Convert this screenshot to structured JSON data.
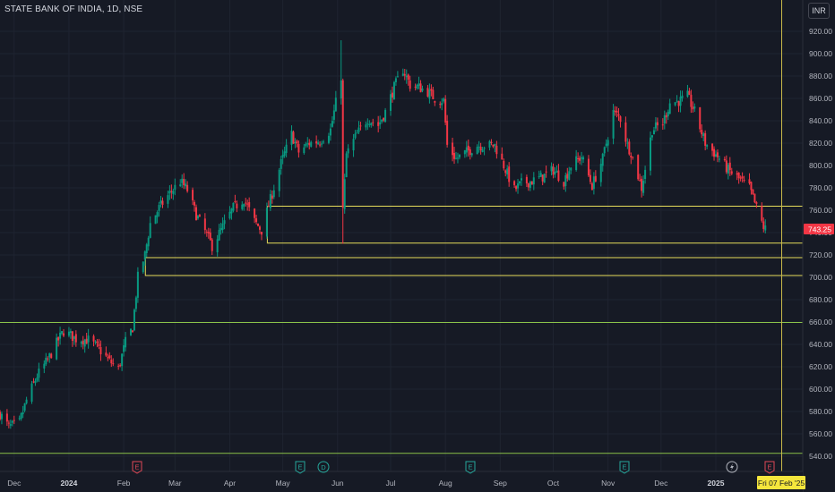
{
  "header": {
    "symbol_title": "STATE BANK OF INDIA, 1D, NSE",
    "currency_label": "INR"
  },
  "price_scale": {
    "ticks": [
      "920.00",
      "900.00",
      "880.00",
      "860.00",
      "840.00",
      "820.00",
      "800.00",
      "780.00",
      "760.00",
      "740.00",
      "720.00",
      "700.00",
      "680.00",
      "660.00",
      "640.00",
      "620.00",
      "600.00",
      "580.00",
      "560.00",
      "540.00"
    ],
    "last_price_label": "743.25",
    "last_price": 743.25,
    "last_price_color": "#f23645"
  },
  "time_scale": {
    "labels": [
      {
        "text": "Dec",
        "strong": false
      },
      {
        "text": "2024",
        "strong": true
      },
      {
        "text": "Feb",
        "strong": false
      },
      {
        "text": "Mar",
        "strong": false
      },
      {
        "text": "Apr",
        "strong": false
      },
      {
        "text": "May",
        "strong": false
      },
      {
        "text": "Jun",
        "strong": false
      },
      {
        "text": "Jul",
        "strong": false
      },
      {
        "text": "Aug",
        "strong": false
      },
      {
        "text": "Sep",
        "strong": false
      },
      {
        "text": "Oct",
        "strong": false
      },
      {
        "text": "Nov",
        "strong": false
      },
      {
        "text": "Dec",
        "strong": false
      },
      {
        "text": "2025",
        "strong": true
      }
    ],
    "crosshair_date_label": "Fri 07 Feb '25"
  },
  "event_markers": [
    "E",
    "E",
    "D",
    "E",
    "E",
    "lightning",
    "E"
  ],
  "colors": {
    "up": "#089981",
    "down": "#f23645",
    "zone_line": "#e6dc5a",
    "support_line": "#8bc34a",
    "crosshair": "#c9b94a"
  },
  "chart_data": {
    "type": "candlestick",
    "title": "STATE BANK OF INDIA, 1D, NSE",
    "ylim": [
      532,
      932
    ],
    "y_ticks": [
      920,
      900,
      880,
      860,
      840,
      820,
      800,
      780,
      760,
      740,
      720,
      700,
      680,
      660,
      640,
      620,
      600,
      580,
      560,
      540
    ],
    "x_range": [
      "2023-11-23",
      "2025-02-07"
    ],
    "month_ticks": [
      "2023-12-01",
      "2024-01-01",
      "2024-02-01",
      "2024-03-01",
      "2024-04-01",
      "2024-05-01",
      "2024-06-01",
      "2024-07-01",
      "2024-08-01",
      "2024-09-01",
      "2024-10-01",
      "2024-11-01",
      "2024-12-01",
      "2025-01-01"
    ],
    "price_path": [
      [
        "2023-11-23",
        578
      ],
      [
        "2023-11-28",
        566
      ],
      [
        "2023-12-04",
        570
      ],
      [
        "2023-12-08",
        590
      ],
      [
        "2023-12-14",
        612
      ],
      [
        "2023-12-20",
        626
      ],
      [
        "2023-12-26",
        644
      ],
      [
        "2023-12-29",
        652
      ],
      [
        "2024-01-05",
        645
      ],
      [
        "2024-01-12",
        644
      ],
      [
        "2024-01-18",
        636
      ],
      [
        "2024-01-24",
        625
      ],
      [
        "2024-01-29",
        618
      ],
      [
        "2024-02-02",
        642
      ],
      [
        "2024-02-06",
        655
      ],
      [
        "2024-02-09",
        700
      ],
      [
        "2024-02-13",
        720
      ],
      [
        "2024-02-16",
        748
      ],
      [
        "2024-02-21",
        762
      ],
      [
        "2024-02-27",
        775
      ],
      [
        "2024-03-04",
        786
      ],
      [
        "2024-03-08",
        778
      ],
      [
        "2024-03-13",
        756
      ],
      [
        "2024-03-19",
        738
      ],
      [
        "2024-03-22",
        728
      ],
      [
        "2024-03-28",
        745
      ],
      [
        "2024-04-03",
        762
      ],
      [
        "2024-04-09",
        770
      ],
      [
        "2024-04-15",
        750
      ],
      [
        "2024-04-19",
        742
      ],
      [
        "2024-04-25",
        775
      ],
      [
        "2024-04-30",
        802
      ],
      [
        "2024-05-06",
        828
      ],
      [
        "2024-05-10",
        812
      ],
      [
        "2024-05-16",
        820
      ],
      [
        "2024-05-22",
        822
      ],
      [
        "2024-05-28",
        832
      ],
      [
        "2024-06-03",
        880
      ],
      [
        "2024-06-04",
        760
      ],
      [
        "2024-06-06",
        810
      ],
      [
        "2024-06-12",
        828
      ],
      [
        "2024-06-18",
        842
      ],
      [
        "2024-06-24",
        836
      ],
      [
        "2024-06-28",
        848
      ],
      [
        "2024-07-03",
        870
      ],
      [
        "2024-07-08",
        886
      ],
      [
        "2024-07-12",
        872
      ],
      [
        "2024-07-17",
        870
      ],
      [
        "2024-07-22",
        866
      ],
      [
        "2024-07-26",
        860
      ],
      [
        "2024-07-31",
        858
      ],
      [
        "2024-08-02",
        818
      ],
      [
        "2024-08-07",
        806
      ],
      [
        "2024-08-13",
        812
      ],
      [
        "2024-08-19",
        818
      ],
      [
        "2024-08-23",
        818
      ],
      [
        "2024-08-29",
        818
      ],
      [
        "2024-09-03",
        800
      ],
      [
        "2024-09-09",
        778
      ],
      [
        "2024-09-13",
        784
      ],
      [
        "2024-09-19",
        786
      ],
      [
        "2024-09-25",
        790
      ],
      [
        "2024-10-01",
        796
      ],
      [
        "2024-10-07",
        786
      ],
      [
        "2024-10-11",
        800
      ],
      [
        "2024-10-17",
        808
      ],
      [
        "2024-10-23",
        782
      ],
      [
        "2024-10-29",
        806
      ],
      [
        "2024-11-04",
        848
      ],
      [
        "2024-11-08",
        842
      ],
      [
        "2024-11-12",
        818
      ],
      [
        "2024-11-14",
        812
      ],
      [
        "2024-11-20",
        780
      ],
      [
        "2024-11-26",
        832
      ],
      [
        "2024-12-02",
        838
      ],
      [
        "2024-12-06",
        856
      ],
      [
        "2024-12-12",
        858
      ],
      [
        "2024-12-16",
        862
      ],
      [
        "2024-12-20",
        848
      ],
      [
        "2024-12-26",
        820
      ],
      [
        "2025-01-02",
        808
      ],
      [
        "2025-01-08",
        796
      ],
      [
        "2025-01-14",
        788
      ],
      [
        "2025-01-20",
        780
      ],
      [
        "2025-01-24",
        762
      ],
      [
        "2025-01-28",
        745
      ],
      [
        "2025-01-29",
        743.25
      ]
    ],
    "horizontal_lines": [
      {
        "price": 764,
        "from": "2024-04-22",
        "color": "#e6dc5a"
      },
      {
        "price": 731,
        "from": "2024-04-22",
        "color": "#e6dc5a"
      },
      {
        "price": 718,
        "from": "2024-02-13",
        "color": "#e6dc5a"
      },
      {
        "price": 702,
        "from": "2024-02-13",
        "color": "#e6dc5a"
      },
      {
        "price": 660,
        "from": "2023-11-23",
        "color": "#8bc34a"
      },
      {
        "price": 543,
        "from": "2023-11-23",
        "color": "#8bc34a"
      }
    ],
    "zone_verticals": [
      {
        "date": "2024-04-22",
        "from_price": 731,
        "to_price": 764
      },
      {
        "date": "2024-02-13",
        "from_price": 702,
        "to_price": 718
      }
    ],
    "crosshair_date": "2025-02-07",
    "last_price": 743.25
  }
}
